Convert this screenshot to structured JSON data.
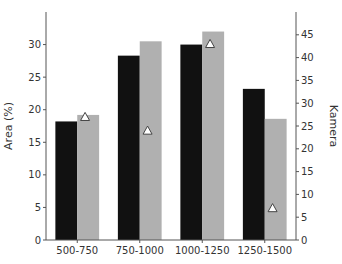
{
  "chart_data": {
    "type": "bar",
    "categories": [
      "500-750",
      "750-1000",
      "1000-1250",
      "1250-1500"
    ],
    "series": [
      {
        "color": "#111111",
        "values": [
          18.2,
          28.3,
          30.0,
          23.2
        ]
      },
      {
        "color": "#b0b0b0",
        "values": [
          19.2,
          30.5,
          32.0,
          18.6
        ]
      },
      {
        "type": "scatter",
        "marker": "triangle",
        "color": "#444444",
        "axis": "y2",
        "values": [
          27,
          24,
          43,
          7
        ]
      }
    ],
    "ylabel": "Area (%)",
    "y2label": "Kamera",
    "ylim": [
      0,
      35
    ],
    "yticks": [
      0,
      5,
      10,
      15,
      20,
      25,
      30
    ],
    "y2lim": [
      0,
      50
    ],
    "y2ticks": [
      0,
      5,
      10,
      15,
      20,
      25,
      30,
      35,
      40,
      45
    ],
    "grid": false
  }
}
